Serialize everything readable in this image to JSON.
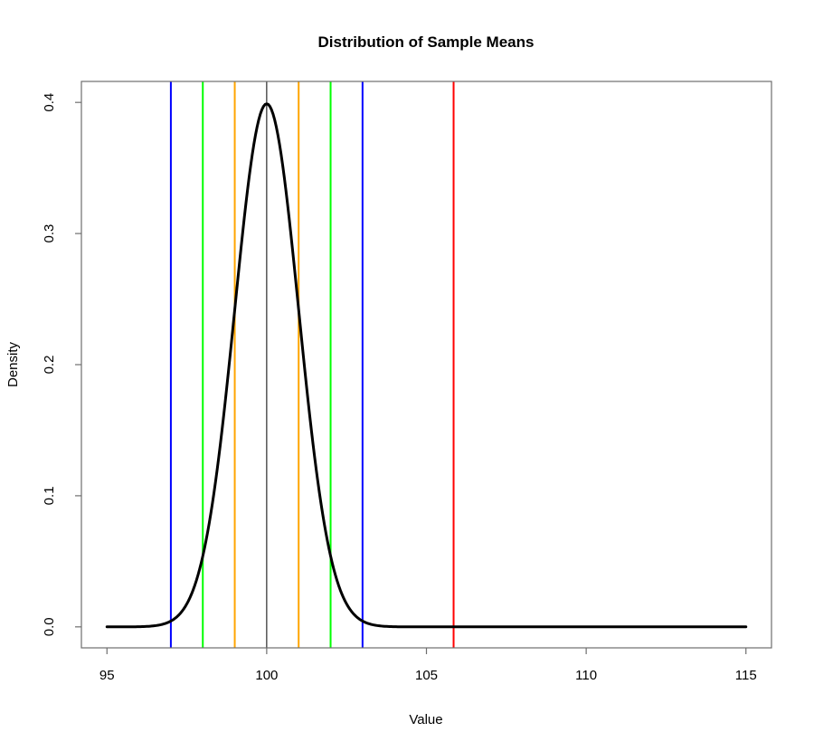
{
  "chart_data": {
    "type": "line",
    "title": "Distribution of Sample Means",
    "xlabel": "Value",
    "ylabel": "Density",
    "xlim": [
      95,
      115
    ],
    "ylim": [
      0,
      0.4
    ],
    "x_ticks": [
      "95",
      "100",
      "105",
      "110",
      "115"
    ],
    "y_ticks": [
      "0.0",
      "0.1",
      "0.2",
      "0.3",
      "0.4"
    ],
    "grid": false,
    "legend": false,
    "background": "#FFFFFF",
    "axis_color": "#6e6e6e",
    "text_color": "#000000",
    "series": [
      {
        "name": "sample-means-density-curve",
        "curve": "normal-density",
        "mean": 100,
        "sd": 1,
        "x_range": [
          95,
          115
        ],
        "peak_point": {
          "x": 100,
          "density": 0.3989
        },
        "color": "#000000",
        "line_width": 3
      }
    ],
    "vertical_lines": [
      {
        "name": "mean-line",
        "x": 100,
        "color": "#000000",
        "width": 1
      },
      {
        "name": "minus-1-sd-line",
        "x": 99,
        "color": "#FFA500",
        "width": 2
      },
      {
        "name": "plus-1-sd-line",
        "x": 101,
        "color": "#FFA500",
        "width": 2
      },
      {
        "name": "minus-2-sd-line",
        "x": 98,
        "color": "#00FF00",
        "width": 2
      },
      {
        "name": "plus-2-sd-line",
        "x": 102,
        "color": "#00FF00",
        "width": 2
      },
      {
        "name": "minus-3-sd-line",
        "x": 97,
        "color": "#0000FF",
        "width": 2
      },
      {
        "name": "plus-3-sd-line",
        "x": 103,
        "color": "#0000FF",
        "width": 2
      },
      {
        "name": "observed-mean-line",
        "x": 105.85,
        "color": "#FF0000",
        "width": 2
      }
    ]
  }
}
